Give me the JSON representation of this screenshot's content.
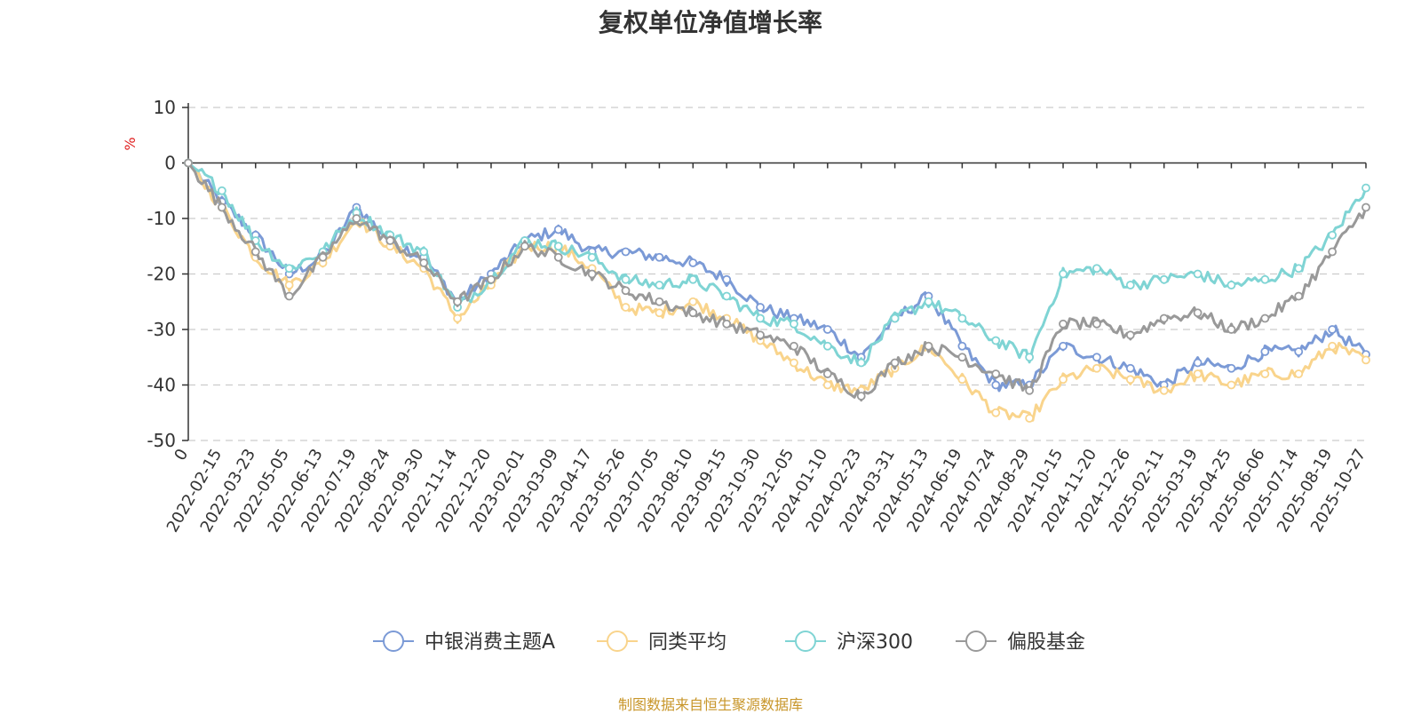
{
  "chart_data": {
    "type": "line",
    "title": "复权单位净值增长率",
    "ylabel": "%",
    "xlabel": "",
    "ylim": [
      -50,
      10
    ],
    "yticks": [
      10,
      0,
      -10,
      -20,
      -30,
      -40,
      -50
    ],
    "grid": true,
    "legend_position": "bottom",
    "x_ticks": [
      "0",
      "2022-02-15",
      "2022-03-23",
      "2022-05-05",
      "2022-06-13",
      "2022-07-19",
      "2022-08-24",
      "2022-09-30",
      "2022-11-14",
      "2022-12-20",
      "2023-02-01",
      "2023-03-09",
      "2023-04-17",
      "2023-05-26",
      "2023-07-05",
      "2023-08-10",
      "2023-09-15",
      "2023-10-30",
      "2023-12-05",
      "2024-01-10",
      "2024-02-23",
      "2024-03-31",
      "2024-05-13",
      "2024-06-19",
      "2024-07-24",
      "2024-08-29",
      "2024-10-15",
      "2024-11-20",
      "2024-12-26",
      "2025-02-11",
      "2025-03-19",
      "2025-04-25",
      "2025-06-06",
      "2025-07-14",
      "2025-08-19",
      "2025-10-27"
    ],
    "series": [
      {
        "name": "中银消费主题A",
        "color": "#7b9ad6",
        "values": [
          0,
          -7,
          -13,
          -20,
          -17,
          -8,
          -14,
          -17,
          -25,
          -20,
          -14,
          -12,
          -16,
          -16,
          -17,
          -18,
          -21,
          -26,
          -28,
          -30,
          -35,
          -28,
          -24,
          -33,
          -40,
          -40,
          -33,
          -35,
          -37,
          -40,
          -36,
          -37,
          -34,
          -34,
          -30,
          -34.5
        ]
      },
      {
        "name": "同类平均",
        "color": "#f9d48c",
        "values": [
          0,
          -8,
          -17,
          -22,
          -18,
          -10,
          -15,
          -19,
          -28,
          -22,
          -15,
          -15,
          -19,
          -26,
          -27,
          -25,
          -28,
          -32,
          -36,
          -40,
          -41,
          -37,
          -33,
          -39,
          -45,
          -46,
          -39,
          -37,
          -39,
          -41,
          -38,
          -40,
          -38,
          -38,
          -33,
          -35.5
        ]
      },
      {
        "name": "沪深300",
        "color": "#7fd4d4",
        "values": [
          0,
          -5,
          -14,
          -19,
          -16,
          -9,
          -13,
          -16,
          -26,
          -21,
          -14,
          -15,
          -17,
          -21,
          -22,
          -21,
          -24,
          -28,
          -29,
          -33,
          -36,
          -28,
          -25,
          -28,
          -32,
          -35,
          -20,
          -19,
          -22,
          -21,
          -20,
          -22,
          -21,
          -19,
          -13,
          -4.5
        ]
      },
      {
        "name": "偏股基金",
        "color": "#999999",
        "values": [
          0,
          -8,
          -16,
          -24,
          -17,
          -10,
          -14,
          -18,
          -25,
          -21,
          -15,
          -17,
          -20,
          -23,
          -25,
          -27,
          -29,
          -31,
          -33,
          -38,
          -42,
          -36,
          -33,
          -35,
          -38,
          -41,
          -29,
          -29,
          -31,
          -28,
          -27,
          -30,
          -28,
          -24,
          -16,
          -8
        ]
      }
    ]
  },
  "source_credit": "制图数据来自恒生聚源数据库"
}
